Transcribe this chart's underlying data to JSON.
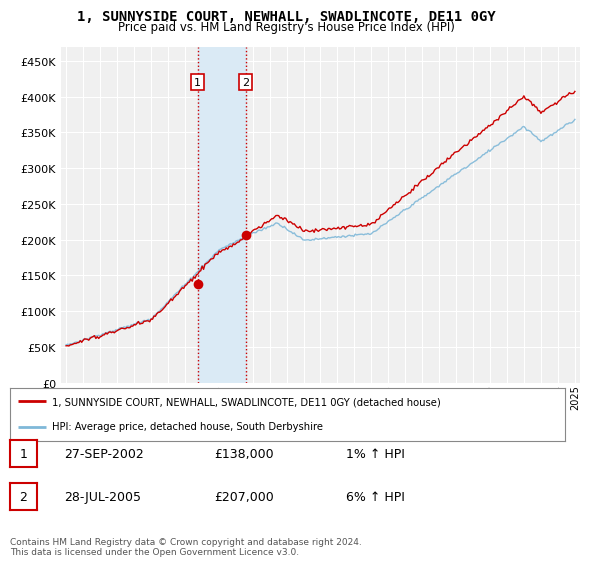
{
  "title": "1, SUNNYSIDE COURT, NEWHALL, SWADLINCOTE, DE11 0GY",
  "subtitle": "Price paid vs. HM Land Registry's House Price Index (HPI)",
  "legend_line1": "1, SUNNYSIDE COURT, NEWHALL, SWADLINCOTE, DE11 0GY (detached house)",
  "legend_line2": "HPI: Average price, detached house, South Derbyshire",
  "transaction1_date": "27-SEP-2002",
  "transaction1_price": "£138,000",
  "transaction1_hpi": "1% ↑ HPI",
  "transaction2_date": "28-JUL-2005",
  "transaction2_price": "£207,000",
  "transaction2_hpi": "6% ↑ HPI",
  "footnote": "Contains HM Land Registry data © Crown copyright and database right 2024.\nThis data is licensed under the Open Government Licence v3.0.",
  "hpi_color": "#7fb8d8",
  "price_color": "#cc0000",
  "shade_color": "#daeaf5",
  "background_color": "#ffffff",
  "plot_bg_color": "#f0f0f0",
  "grid_color": "#ffffff",
  "ylim": [
    0,
    470000
  ],
  "yticks": [
    0,
    50000,
    100000,
    150000,
    200000,
    250000,
    300000,
    350000,
    400000,
    450000
  ],
  "transaction1_x": 2002.75,
  "transaction1_y": 138000,
  "transaction2_x": 2005.58,
  "transaction2_y": 207000,
  "shade_x1": 2002.75,
  "shade_x2": 2005.58,
  "xlim_min": 1994.7,
  "xlim_max": 2025.3
}
